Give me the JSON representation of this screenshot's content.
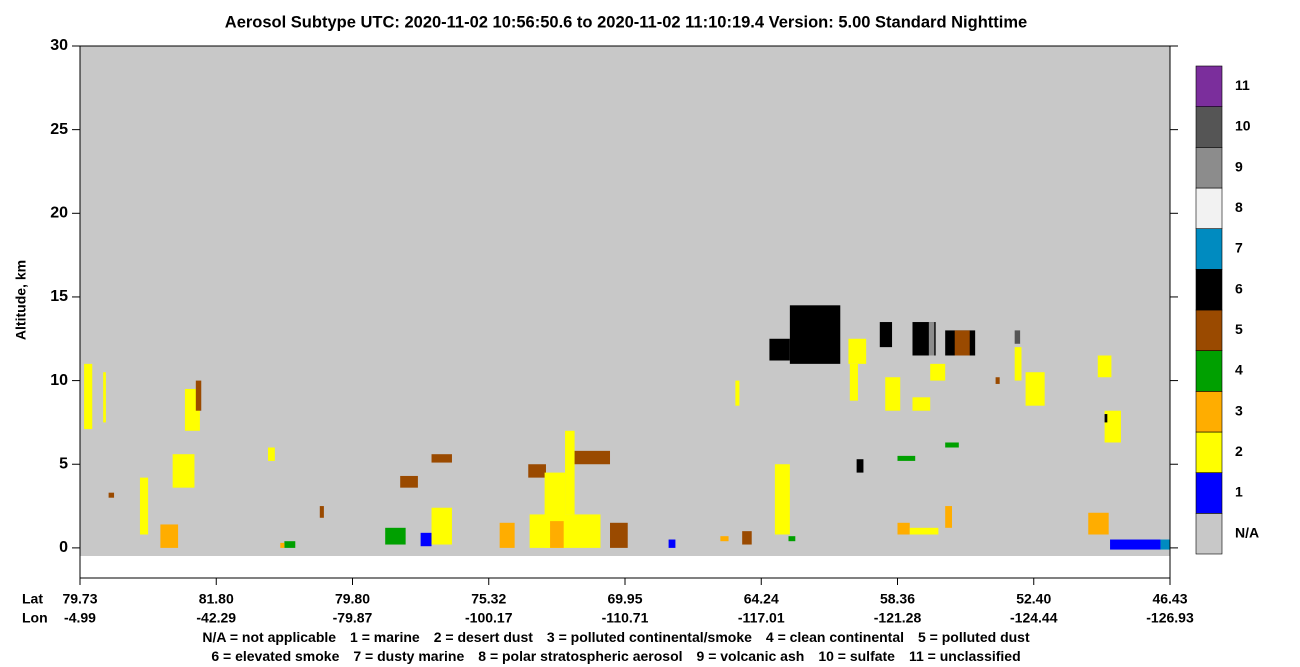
{
  "chart_data": {
    "type": "profile",
    "title": "Aerosol Subtype    UTC:  2020-11-02   10:56:50.6  to  2020-11-02   11:10:19.4    Version: 5.00  Standard Nighttime",
    "ylabel": "Altitude, km",
    "ylim": [
      -1.8,
      30
    ],
    "yticks": [
      0,
      5,
      10,
      15,
      20,
      25,
      30
    ],
    "xlim": [
      0,
      8
    ],
    "lat_label": "Lat",
    "lon_label": "Lon",
    "xticks": [
      {
        "value": 0,
        "label": "79.73"
      },
      {
        "value": 1,
        "label": "81.80"
      },
      {
        "value": 2,
        "label": "79.80"
      },
      {
        "value": 3,
        "label": "75.32"
      },
      {
        "value": 4,
        "label": "69.95"
      },
      {
        "value": 5,
        "label": "64.24"
      },
      {
        "value": 6,
        "label": "58.36"
      },
      {
        "value": 7,
        "label": "52.40"
      },
      {
        "value": 8,
        "label": "46.43"
      }
    ],
    "lon_ticks": [
      "-4.99",
      "-42.29",
      "-79.87",
      "-100.17",
      "-110.71",
      "-117.01",
      "-121.28",
      "-124.44",
      "-126.93"
    ],
    "colorbar": {
      "labels": [
        "N/A",
        "1",
        "2",
        "3",
        "4",
        "5",
        "6",
        "7",
        "8",
        "9",
        "10",
        "11"
      ],
      "colors": [
        "#c8c8c8",
        "#0000ff",
        "#ffff00",
        "#ffad00",
        "#00a000",
        "#9a4a00",
        "#000000",
        "#008bc0",
        "#f2f2f2",
        "#8c8c8c",
        "#555555",
        "#7b2e9c"
      ]
    },
    "legend_rows": [
      [
        "N/A = not applicable",
        "1 = marine",
        "2 = desert dust",
        "3 = polluted continental/smoke",
        "4 = clean continental",
        "5 = polluted dust"
      ],
      [
        "6 = elevated smoke",
        "7 = dusty marine",
        "8 = polar stratospheric aerosol",
        "9 = volcanic ash",
        "10 = sulfate",
        "11 = unclassified"
      ]
    ],
    "features": [
      [
        0.03,
        0.09,
        7.1,
        11,
        2
      ],
      [
        0.17,
        0.19,
        7.5,
        10.5,
        2
      ],
      [
        0.77,
        0.88,
        7,
        9.5,
        2
      ],
      [
        0.85,
        0.89,
        8.2,
        10,
        5
      ],
      [
        0.68,
        0.84,
        3.6,
        5.6,
        2
      ],
      [
        0.59,
        0.72,
        0,
        1.4,
        3
      ],
      [
        0.44,
        0.5,
        0.8,
        4.2,
        2
      ],
      [
        0.21,
        0.25,
        3,
        3.3,
        5
      ],
      [
        1.38,
        1.43,
        5.2,
        6,
        2
      ],
      [
        1.5,
        1.58,
        0,
        0.4,
        4
      ],
      [
        1.47,
        1.5,
        0,
        0.3,
        3
      ],
      [
        1.76,
        1.79,
        1.8,
        2.5,
        5
      ],
      [
        2.35,
        2.48,
        3.6,
        4.3,
        5
      ],
      [
        2.58,
        2.73,
        5.1,
        5.6,
        5
      ],
      [
        2.24,
        2.39,
        0.2,
        1.2,
        4
      ],
      [
        2.5,
        2.58,
        0.1,
        0.9,
        1
      ],
      [
        2.58,
        2.73,
        0.2,
        2.4,
        2
      ],
      [
        3.08,
        3.19,
        0,
        1.5,
        3
      ],
      [
        3.29,
        3.42,
        4.2,
        5,
        5
      ],
      [
        3.3,
        3.82,
        0,
        2,
        2
      ],
      [
        3.41,
        3.56,
        0,
        4.5,
        2
      ],
      [
        3.56,
        3.63,
        2,
        7,
        2
      ],
      [
        3.63,
        3.89,
        5,
        5.8,
        5
      ],
      [
        3.45,
        3.55,
        0,
        1.6,
        3
      ],
      [
        3.89,
        4.02,
        0,
        1.5,
        5
      ],
      [
        4.32,
        4.37,
        0,
        0.5,
        1
      ],
      [
        4.7,
        4.76,
        0.4,
        0.7,
        3
      ],
      [
        4.86,
        4.93,
        0.2,
        1,
        5
      ],
      [
        5.1,
        5.21,
        0.8,
        5,
        2
      ],
      [
        5.2,
        5.25,
        0.4,
        0.7,
        4
      ],
      [
        4.81,
        4.84,
        8.5,
        10,
        2
      ],
      [
        5.06,
        5.21,
        11.2,
        12.5,
        6
      ],
      [
        5.21,
        5.58,
        11,
        14.5,
        6
      ],
      [
        5.87,
        5.96,
        12,
        13.5,
        6
      ],
      [
        6.11,
        6.28,
        11.5,
        13.5,
        6
      ],
      [
        6.35,
        6.57,
        11.5,
        13,
        6
      ],
      [
        5.64,
        5.77,
        11,
        12.5,
        2
      ],
      [
        5.65,
        5.71,
        8.8,
        11,
        2
      ],
      [
        6.23,
        6.27,
        11.5,
        13.5,
        9
      ],
      [
        6.42,
        6.53,
        11.5,
        13,
        5
      ],
      [
        5.91,
        6.02,
        8.2,
        10.2,
        2
      ],
      [
        6.11,
        6.24,
        8.2,
        9,
        2
      ],
      [
        6.24,
        6.35,
        10,
        11,
        2
      ],
      [
        6.94,
        7.08,
        8.5,
        10.5,
        2
      ],
      [
        7.47,
        7.57,
        10.2,
        11.5,
        2
      ],
      [
        7.52,
        7.64,
        6.3,
        8.2,
        2
      ],
      [
        7.52,
        7.54,
        7.5,
        8,
        6
      ],
      [
        6.0,
        6.13,
        5.2,
        5.5,
        4
      ],
      [
        6.35,
        6.45,
        6,
        6.3,
        4
      ],
      [
        6.35,
        6.4,
        1.2,
        2.5,
        3
      ],
      [
        6.0,
        6.09,
        0.8,
        1.5,
        3
      ],
      [
        6.09,
        6.3,
        0.8,
        1.2,
        2
      ],
      [
        7.4,
        7.55,
        0.8,
        2.1,
        3
      ],
      [
        7.56,
        7.93,
        -0.1,
        0.5,
        1
      ],
      [
        7.93,
        8.0,
        -0.1,
        0.5,
        7
      ],
      [
        6.86,
        6.9,
        12.2,
        13,
        10
      ],
      [
        6.86,
        6.91,
        10,
        12,
        2
      ],
      [
        6.72,
        6.75,
        9.8,
        10.2,
        5
      ],
      [
        5.7,
        5.75,
        4.5,
        5.3,
        6
      ]
    ]
  }
}
